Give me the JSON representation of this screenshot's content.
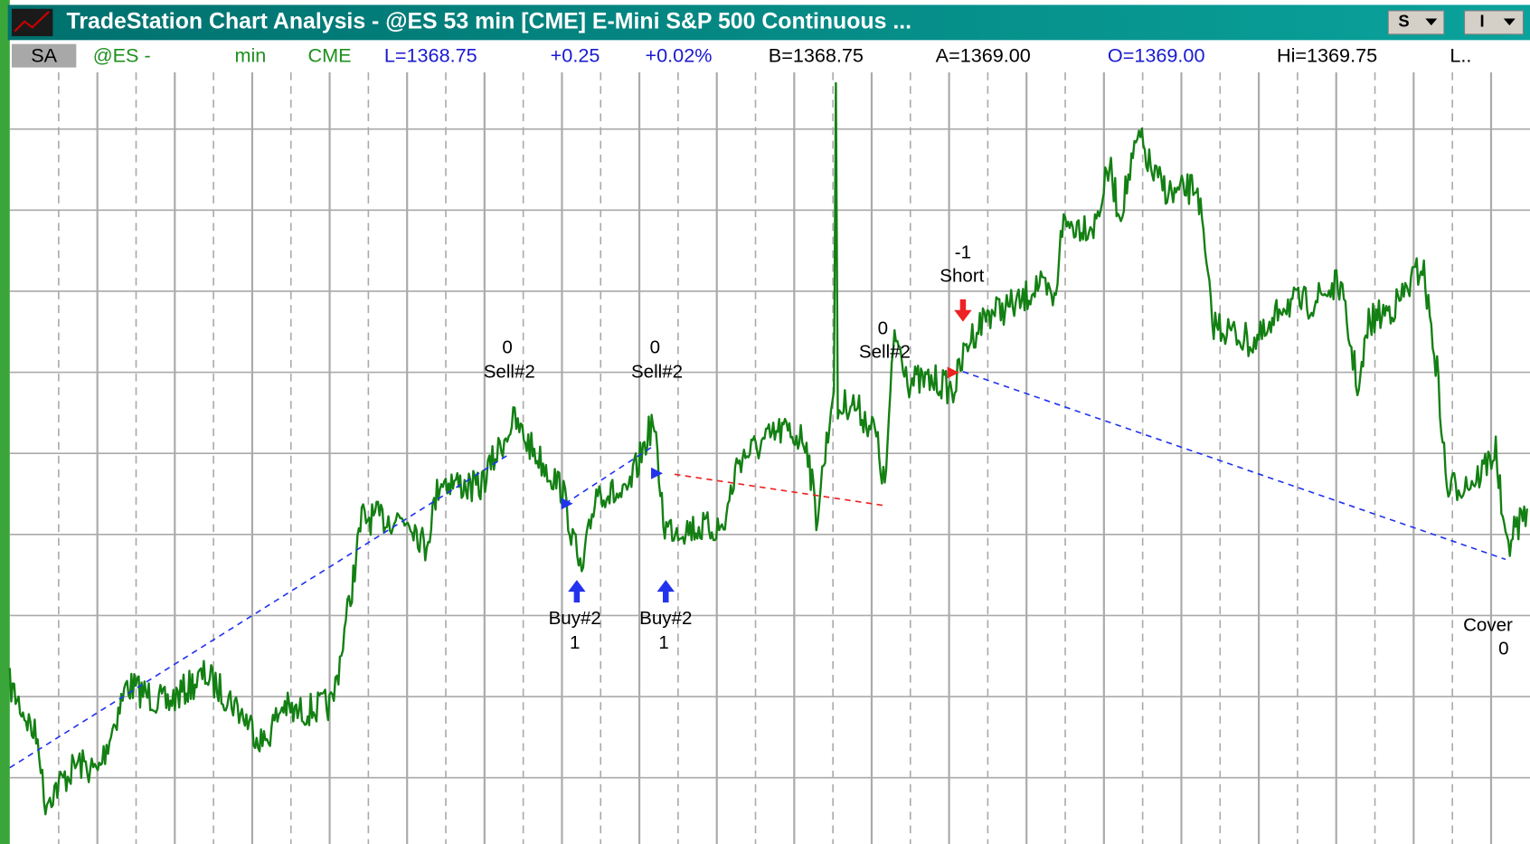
{
  "window": {
    "title": "TradeStation Chart Analysis - @ES  53 min  [CME] E-Mini S&P 500 Continuous ...",
    "buttons": [
      "S",
      "I"
    ]
  },
  "status": {
    "symbol_box": "SA",
    "symbol": "@ES -",
    "interval": "min",
    "exchange": "CME",
    "last": "L=1368.75",
    "change": "+0.25",
    "change_pct": "+0.02%",
    "bid": "B=1368.75",
    "ask": "A=1369.00",
    "open": "O=1369.00",
    "high": "Hi=1369.75",
    "more": "L.."
  },
  "trades": [
    {
      "label": "Sell#2",
      "qty": "0"
    },
    {
      "label": "Sell#2",
      "qty": "0"
    },
    {
      "label": "Sell#2",
      "qty": "0"
    },
    {
      "label": "Short",
      "qty": "-1"
    },
    {
      "label": "Buy#2",
      "qty": "1"
    },
    {
      "label": "Buy#2",
      "qty": "1"
    },
    {
      "label": "Cover",
      "qty": "0"
    }
  ]
}
